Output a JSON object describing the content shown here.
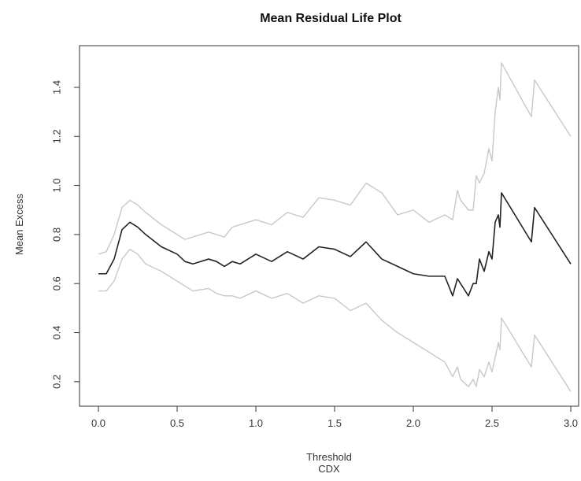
{
  "chart_data": {
    "type": "line",
    "title": "Mean Residual Life Plot",
    "xlabel": "Threshold",
    "xlabel_sub": "CDX",
    "ylabel": "Mean Excess",
    "xlim": [
      -0.12,
      3.05
    ],
    "ylim": [
      0.1,
      1.57
    ],
    "x_ticks": [
      0.0,
      0.5,
      1.0,
      1.5,
      2.0,
      2.5,
      3.0
    ],
    "x_tick_labels": [
      "0.0",
      "0.5",
      "1.0",
      "1.5",
      "2.0",
      "2.5",
      "3.0"
    ],
    "y_ticks": [
      0.2,
      0.4,
      0.6,
      0.8,
      1.0,
      1.2,
      1.4
    ],
    "y_tick_labels": [
      "0.2",
      "0.4",
      "0.6",
      "0.8",
      "1.0",
      "1.2",
      "1.4"
    ],
    "grid": false,
    "series": [
      {
        "role": "upper",
        "color": "#c8c8c8",
        "x": [
          0.0,
          0.05,
          0.1,
          0.15,
          0.2,
          0.25,
          0.3,
          0.4,
          0.5,
          0.55,
          0.6,
          0.7,
          0.75,
          0.8,
          0.85,
          0.9,
          1.0,
          1.1,
          1.2,
          1.3,
          1.4,
          1.5,
          1.6,
          1.7,
          1.8,
          1.9,
          2.0,
          2.1,
          2.2,
          2.25,
          2.28,
          2.3,
          2.35,
          2.38,
          2.4,
          2.42,
          2.45,
          2.48,
          2.5,
          2.52,
          2.54,
          2.55,
          2.56,
          2.75,
          2.77,
          3.0
        ],
        "y": [
          0.72,
          0.73,
          0.8,
          0.91,
          0.94,
          0.92,
          0.89,
          0.84,
          0.8,
          0.78,
          0.79,
          0.81,
          0.8,
          0.79,
          0.83,
          0.84,
          0.86,
          0.84,
          0.89,
          0.87,
          0.95,
          0.94,
          0.92,
          1.01,
          0.97,
          0.88,
          0.9,
          0.85,
          0.88,
          0.86,
          0.98,
          0.94,
          0.9,
          0.9,
          1.04,
          1.01,
          1.05,
          1.15,
          1.1,
          1.3,
          1.4,
          1.35,
          1.5,
          1.28,
          1.43,
          1.2
        ]
      },
      {
        "role": "mean",
        "color": "#222222",
        "x": [
          0.0,
          0.05,
          0.1,
          0.15,
          0.2,
          0.25,
          0.3,
          0.4,
          0.5,
          0.55,
          0.6,
          0.7,
          0.75,
          0.8,
          0.85,
          0.9,
          1.0,
          1.1,
          1.2,
          1.3,
          1.4,
          1.5,
          1.6,
          1.7,
          1.8,
          1.9,
          2.0,
          2.1,
          2.2,
          2.25,
          2.28,
          2.3,
          2.35,
          2.38,
          2.4,
          2.42,
          2.45,
          2.48,
          2.5,
          2.52,
          2.54,
          2.55,
          2.56,
          2.75,
          2.77,
          3.0
        ],
        "y": [
          0.64,
          0.64,
          0.7,
          0.82,
          0.85,
          0.83,
          0.8,
          0.75,
          0.72,
          0.69,
          0.68,
          0.7,
          0.69,
          0.67,
          0.69,
          0.68,
          0.72,
          0.69,
          0.73,
          0.7,
          0.75,
          0.74,
          0.71,
          0.77,
          0.7,
          0.67,
          0.64,
          0.63,
          0.63,
          0.55,
          0.62,
          0.6,
          0.55,
          0.6,
          0.6,
          0.7,
          0.65,
          0.73,
          0.7,
          0.85,
          0.88,
          0.83,
          0.97,
          0.77,
          0.91,
          0.68
        ]
      },
      {
        "role": "lower",
        "color": "#c8c8c8",
        "x": [
          0.0,
          0.05,
          0.1,
          0.15,
          0.2,
          0.25,
          0.3,
          0.4,
          0.5,
          0.55,
          0.6,
          0.7,
          0.75,
          0.8,
          0.85,
          0.9,
          1.0,
          1.1,
          1.2,
          1.3,
          1.4,
          1.5,
          1.6,
          1.7,
          1.8,
          1.9,
          2.0,
          2.1,
          2.2,
          2.25,
          2.28,
          2.3,
          2.35,
          2.38,
          2.4,
          2.42,
          2.45,
          2.48,
          2.5,
          2.52,
          2.54,
          2.55,
          2.56,
          2.75,
          2.77,
          3.0
        ],
        "y": [
          0.57,
          0.57,
          0.61,
          0.7,
          0.74,
          0.72,
          0.68,
          0.65,
          0.61,
          0.59,
          0.57,
          0.58,
          0.56,
          0.55,
          0.55,
          0.54,
          0.57,
          0.54,
          0.56,
          0.52,
          0.55,
          0.54,
          0.49,
          0.52,
          0.45,
          0.4,
          0.36,
          0.32,
          0.28,
          0.22,
          0.26,
          0.21,
          0.18,
          0.21,
          0.18,
          0.25,
          0.22,
          0.28,
          0.24,
          0.3,
          0.36,
          0.33,
          0.46,
          0.26,
          0.39,
          0.16
        ]
      }
    ]
  }
}
